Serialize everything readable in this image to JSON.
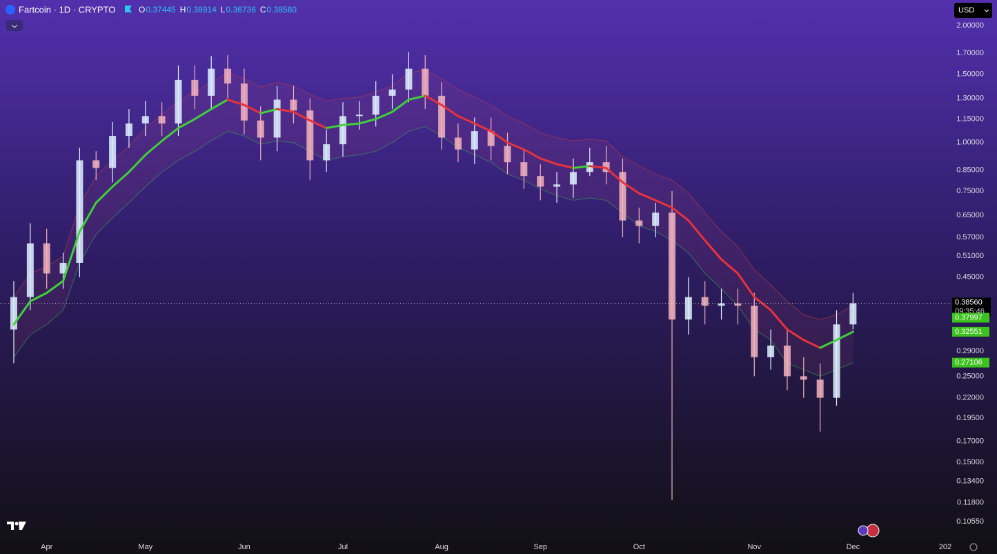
{
  "header": {
    "symbol": "Fartcoin · 1D · CRYPTO",
    "ohlc": [
      {
        "key": "O",
        "value": "0.37445"
      },
      {
        "key": "H",
        "value": "0.38914"
      },
      {
        "key": "L",
        "value": "0.36736"
      },
      {
        "key": "C",
        "value": "0.38560"
      }
    ],
    "currency": "USD"
  },
  "chart_data": {
    "type": "candlestick",
    "log_scale": true,
    "categories": [
      null,
      null,
      "Apr",
      null,
      null,
      null,
      null,
      null,
      "May",
      null,
      null,
      null,
      null,
      null,
      "Jun",
      null,
      null,
      null,
      null,
      null,
      "Jul",
      null,
      null,
      null,
      null,
      null,
      "Aug",
      null,
      null,
      null,
      null,
      null,
      "Sep",
      null,
      null,
      null,
      null,
      null,
      "Oct",
      null,
      null,
      null,
      null,
      null,
      null,
      "Nov",
      null,
      null,
      null,
      null,
      null,
      "Dec"
    ],
    "next_period_label": "202",
    "open": [
      0.33,
      0.4,
      0.55,
      0.46,
      0.49,
      0.9,
      0.86,
      1.04,
      1.12,
      1.17,
      1.12,
      1.45,
      1.32,
      1.55,
      1.42,
      1.14,
      1.03,
      1.29,
      1.21,
      0.9,
      0.99,
      1.17,
      1.18,
      1.32,
      1.37,
      1.55,
      1.32,
      1.03,
      0.96,
      1.07,
      0.98,
      0.89,
      0.82,
      0.77,
      0.78,
      0.84,
      0.89,
      0.84,
      0.63,
      0.61,
      0.66,
      0.35,
      0.4,
      0.38,
      0.385,
      0.38,
      0.28,
      0.3,
      0.25,
      0.245,
      0.22,
      0.34
    ],
    "high": [
      0.44,
      0.62,
      0.6,
      0.52,
      0.97,
      0.95,
      1.13,
      1.22,
      1.28,
      1.27,
      1.58,
      1.58,
      1.67,
      1.68,
      1.55,
      1.24,
      1.4,
      1.4,
      1.3,
      1.08,
      1.27,
      1.28,
      1.44,
      1.5,
      1.71,
      1.68,
      1.43,
      1.12,
      1.16,
      1.16,
      1.06,
      0.96,
      0.88,
      0.84,
      0.91,
      0.97,
      0.98,
      0.91,
      0.68,
      0.7,
      0.75,
      0.45,
      0.44,
      0.42,
      0.42,
      0.41,
      0.33,
      0.33,
      0.28,
      0.27,
      0.37,
      0.41
    ],
    "low": [
      0.27,
      0.37,
      0.42,
      0.42,
      0.45,
      0.8,
      0.79,
      0.97,
      1.04,
      1.04,
      1.04,
      1.22,
      1.22,
      1.3,
      1.05,
      0.9,
      0.95,
      1.12,
      0.8,
      0.84,
      0.92,
      1.08,
      1.1,
      1.22,
      1.27,
      1.22,
      0.96,
      0.89,
      0.88,
      0.9,
      0.83,
      0.76,
      0.71,
      0.7,
      0.72,
      0.82,
      0.78,
      0.57,
      0.55,
      0.57,
      0.12,
      0.32,
      0.34,
      0.35,
      0.34,
      0.25,
      0.26,
      0.23,
      0.22,
      0.18,
      0.21,
      0.33
    ],
    "close": [
      0.4,
      0.55,
      0.46,
      0.49,
      0.9,
      0.86,
      1.04,
      1.12,
      1.17,
      1.12,
      1.45,
      1.32,
      1.55,
      1.42,
      1.14,
      1.03,
      1.29,
      1.21,
      0.9,
      0.99,
      1.17,
      1.18,
      1.32,
      1.37,
      1.55,
      1.32,
      1.03,
      0.96,
      1.07,
      0.98,
      0.89,
      0.82,
      0.77,
      0.78,
      0.84,
      0.89,
      0.84,
      0.63,
      0.61,
      0.66,
      0.35,
      0.4,
      0.38,
      0.385,
      0.38,
      0.28,
      0.3,
      0.25,
      0.245,
      0.22,
      0.34,
      0.3856
    ],
    "up_color": "#dff2ff",
    "down_color": "#f3b4bd",
    "ma": {
      "values": [
        0.34,
        0.39,
        0.41,
        0.44,
        0.59,
        0.7,
        0.77,
        0.84,
        0.93,
        1.01,
        1.09,
        1.15,
        1.22,
        1.29,
        1.25,
        1.19,
        1.22,
        1.2,
        1.14,
        1.09,
        1.11,
        1.12,
        1.15,
        1.2,
        1.29,
        1.32,
        1.25,
        1.17,
        1.12,
        1.07,
        1.0,
        0.96,
        0.91,
        0.88,
        0.86,
        0.87,
        0.86,
        0.79,
        0.74,
        0.71,
        0.68,
        0.63,
        0.56,
        0.5,
        0.46,
        0.4,
        0.37,
        0.33,
        0.31,
        0.296,
        0.31,
        0.32551
      ],
      "rising_color": "#3fd13a",
      "falling_color": "#e8323c"
    },
    "upper": {
      "values": [
        0.4,
        0.46,
        0.48,
        0.51,
        0.69,
        0.82,
        0.9,
        0.98,
        1.09,
        1.18,
        1.28,
        1.35,
        1.43,
        1.51,
        1.46,
        1.39,
        1.43,
        1.4,
        1.33,
        1.28,
        1.3,
        1.31,
        1.35,
        1.4,
        1.51,
        1.54,
        1.46,
        1.37,
        1.31,
        1.25,
        1.17,
        1.12,
        1.06,
        1.03,
        1.01,
        1.02,
        1.01,
        0.92,
        0.87,
        0.83,
        0.8,
        0.74,
        0.66,
        0.59,
        0.54,
        0.47,
        0.43,
        0.39,
        0.36,
        0.35,
        0.36,
        0.37997
      ],
      "color": "#c0384a"
    },
    "lower": {
      "values": [
        0.28,
        0.32,
        0.34,
        0.37,
        0.49,
        0.58,
        0.64,
        0.7,
        0.77,
        0.84,
        0.9,
        0.95,
        1.01,
        1.07,
        1.04,
        0.99,
        1.01,
        1.0,
        0.95,
        0.9,
        0.92,
        0.93,
        0.95,
        1.0,
        1.07,
        1.1,
        1.04,
        0.97,
        0.93,
        0.89,
        0.83,
        0.8,
        0.76,
        0.73,
        0.71,
        0.72,
        0.71,
        0.66,
        0.61,
        0.59,
        0.56,
        0.52,
        0.46,
        0.42,
        0.38,
        0.33,
        0.31,
        0.27,
        0.26,
        0.25,
        0.26,
        0.27106
      ],
      "color": "#3aa655"
    },
    "band_color": "#b84a7a",
    "last_price": {
      "value": 0.3856,
      "label": "0.38560",
      "countdown": "09:35:46"
    },
    "ylim": [
      0.0957,
      2.33
    ],
    "yticks": [
      {
        "value": 2,
        "label": "2.00000"
      },
      {
        "value": 1.7,
        "label": "1.70000"
      },
      {
        "value": 1.5,
        "label": "1.50000"
      },
      {
        "value": 1.3,
        "label": "1.30000"
      },
      {
        "value": 1.15,
        "label": "1.15000"
      },
      {
        "value": 1,
        "label": "1.00000"
      },
      {
        "value": 0.85,
        "label": "0.85000"
      },
      {
        "value": 0.75,
        "label": "0.75000"
      },
      {
        "value": 0.65,
        "label": "0.65000"
      },
      {
        "value": 0.57,
        "label": "0.57000"
      },
      {
        "value": 0.51,
        "label": "0.51000"
      },
      {
        "value": 0.45,
        "label": "0.45000"
      },
      {
        "value": 0.29,
        "label": "0.29000"
      },
      {
        "value": 0.25,
        "label": "0.25000"
      },
      {
        "value": 0.22,
        "label": "0.22000"
      },
      {
        "value": 0.195,
        "label": "0.19500"
      },
      {
        "value": 0.17,
        "label": "0.17000"
      },
      {
        "value": 0.15,
        "label": "0.15000"
      },
      {
        "value": 0.134,
        "label": "0.13400"
      },
      {
        "value": 0.118,
        "label": "0.11800"
      },
      {
        "value": 0.1055,
        "label": "0.10550"
      }
    ]
  }
}
